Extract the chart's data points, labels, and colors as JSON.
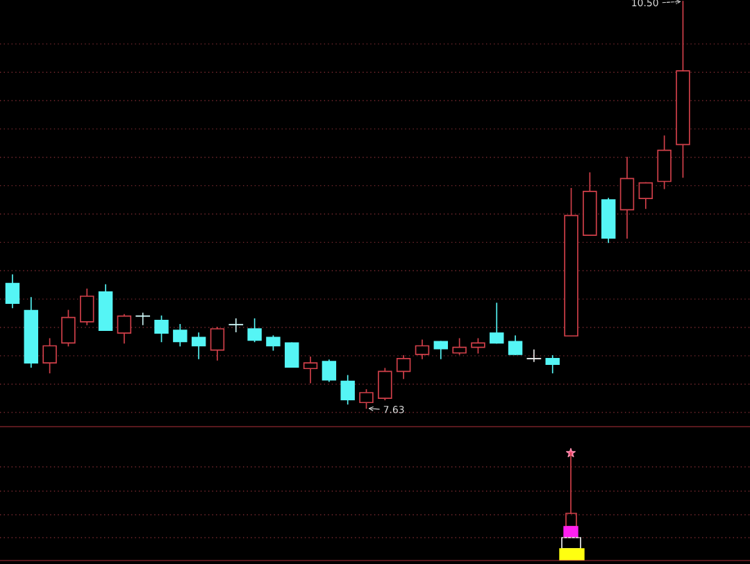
{
  "chart_data": {
    "type": "candlestick",
    "categories": [
      null,
      null,
      null,
      null,
      null,
      null,
      null,
      null,
      null,
      null,
      null,
      null,
      null,
      null,
      null,
      null,
      null,
      null,
      null,
      null,
      null,
      null,
      null,
      null,
      null,
      null,
      null,
      null,
      null,
      null,
      null,
      null,
      null,
      null,
      null,
      null,
      null
    ],
    "ohlc": [
      [
        8.51,
        8.57,
        8.34,
        8.37
      ],
      [
        8.32,
        8.41,
        7.92,
        7.95
      ],
      [
        7.95,
        8.12,
        7.88,
        8.07
      ],
      [
        8.09,
        8.32,
        8.07,
        8.27
      ],
      [
        8.24,
        8.47,
        8.22,
        8.42
      ],
      [
        8.45,
        8.5,
        8.18,
        8.18
      ],
      [
        8.16,
        8.29,
        8.09,
        8.28
      ],
      [
        8.28,
        8.3,
        8.22,
        8.28
      ],
      [
        8.25,
        8.28,
        8.1,
        8.16
      ],
      [
        8.18,
        8.22,
        8.07,
        8.1
      ],
      [
        8.13,
        8.16,
        7.98,
        8.07
      ],
      [
        8.04,
        8.2,
        7.97,
        8.19
      ],
      [
        8.22,
        8.26,
        8.17,
        8.22
      ],
      [
        8.19,
        8.26,
        8.1,
        8.11
      ],
      [
        8.13,
        8.14,
        8.04,
        8.07
      ],
      [
        8.09,
        8.09,
        7.92,
        7.92
      ],
      [
        7.91,
        7.99,
        7.81,
        7.95
      ],
      [
        7.96,
        7.97,
        7.82,
        7.83
      ],
      [
        7.82,
        7.86,
        7.66,
        7.69
      ],
      [
        7.67,
        7.76,
        7.63,
        7.74
      ],
      [
        7.7,
        7.91,
        7.69,
        7.89
      ],
      [
        7.89,
        8.0,
        7.84,
        7.98
      ],
      [
        8.01,
        8.11,
        7.98,
        8.07
      ],
      [
        8.1,
        8.1,
        7.98,
        8.05
      ],
      [
        8.02,
        8.12,
        8.01,
        8.06
      ],
      [
        8.06,
        8.12,
        8.02,
        8.09
      ],
      [
        8.16,
        8.37,
        8.09,
        8.09
      ],
      [
        8.1,
        8.14,
        8.01,
        8.01
      ],
      [
        7.98,
        8.04,
        7.96,
        7.98
      ],
      [
        7.98,
        8.0,
        7.88,
        7.94
      ],
      [
        8.14,
        9.18,
        8.14,
        8.99
      ],
      [
        8.85,
        9.29,
        8.85,
        9.16
      ],
      [
        9.1,
        9.11,
        8.8,
        8.83
      ],
      [
        9.03,
        9.4,
        8.83,
        9.25
      ],
      [
        9.11,
        9.22,
        9.04,
        9.22
      ],
      [
        9.23,
        9.55,
        9.18,
        9.45
      ],
      [
        9.49,
        10.5,
        9.26,
        10.01
      ]
    ],
    "colors": [
      "#55f5f5",
      "#55f5f5",
      "#d2404a",
      "#d2404a",
      "#d2404a",
      "#55f5f5",
      "#d2404a",
      "#c8f0f0",
      "#55f5f5",
      "#55f5f5",
      "#55f5f5",
      "#d2404a",
      "#c8f0f0",
      "#55f5f5",
      "#55f5f5",
      "#55f5f5",
      "#d2404a",
      "#55f5f5",
      "#55f5f5",
      "#d2404a",
      "#d2404a",
      "#d2404a",
      "#d2404a",
      "#55f5f5",
      "#d2404a",
      "#d2404a",
      "#55f5f5",
      "#55f5f5",
      "#e8e8e8",
      "#55f5f5",
      "#d2404a",
      "#d2404a",
      "#55f5f5",
      "#d2404a",
      "#d2404a",
      "#d2404a",
      "#d2404a"
    ],
    "ylim": [
      7.5,
      10.51
    ],
    "yticks": [
      {
        "value": 7.6,
        "label": null
      },
      {
        "value": 7.8,
        "label": null
      },
      {
        "value": 8.0,
        "label": null
      },
      {
        "value": 8.2,
        "label": null
      },
      {
        "value": 8.4,
        "label": null
      },
      {
        "value": 8.6,
        "label": null
      },
      {
        "value": 8.8,
        "label": null
      },
      {
        "value": 9.0,
        "label": null
      },
      {
        "value": 9.2,
        "label": null
      },
      {
        "value": 9.4,
        "label": null
      },
      {
        "value": 9.6,
        "label": null
      },
      {
        "value": 9.8,
        "label": null
      },
      {
        "value": 10.0,
        "label": null
      },
      {
        "value": 10.2,
        "label": null
      }
    ],
    "grid": "y",
    "annotations": [
      "10.50",
      "7.63"
    ]
  }
}
